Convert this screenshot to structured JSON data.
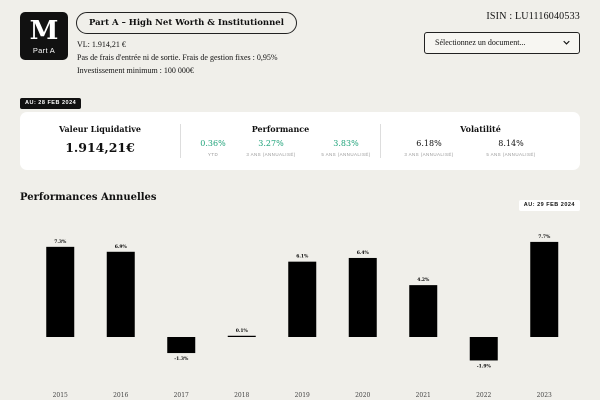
{
  "header": {
    "logo_mark": "M",
    "logo_sub": "Part A",
    "share_class": "Part A – High Net Worth & Institutionnel",
    "nav_line": "VL: 1.914,21 €",
    "fees_line": "Pas de frais d'entrée ni de sortie. Frais de gestion fixes : 0,95%",
    "min_invest_line": "Investissement minimum : 100 000€",
    "isin": "ISIN : LU1116040533",
    "doc_select_placeholder": "Sélectionnez un document..."
  },
  "summary": {
    "date_badge": "AU: 28 FEB 2024",
    "nav_title": "Valeur Liquidative",
    "nav_value": "1.914,21€",
    "performance_title": "Performance",
    "performance": [
      {
        "value": "0.36%",
        "label": "YTD"
      },
      {
        "value": "3.27%",
        "label": "3 ANS (ANNUALISÉ)"
      },
      {
        "value": "3.83%",
        "label": "5 ANS (ANNUALISÉ)"
      }
    ],
    "volatility_title": "Volatilité",
    "volatility": [
      {
        "value": "6.18%",
        "label": "3 ANS (ANNUALISÉ)"
      },
      {
        "value": "8.14%",
        "label": "5 ANS (ANNUALISÉ)"
      }
    ],
    "accent_green": "#1fa37a"
  },
  "annual": {
    "title": "Performances Annuelles",
    "date_badge": "AU: 29 FEB 2024"
  },
  "chart_data": {
    "type": "bar",
    "categories": [
      "2015",
      "2016",
      "2017",
      "2018",
      "2019",
      "2020",
      "2021",
      "2022",
      "2023"
    ],
    "values": [
      7.3,
      6.9,
      -1.3,
      0.1,
      6.1,
      6.4,
      4.2,
      -1.9,
      7.7
    ],
    "value_labels": [
      "7.3%",
      "6.9%",
      "-1.3%",
      "0.1%",
      "6.1%",
      "6.4%",
      "4.2%",
      "-1.9%",
      "7.7%"
    ],
    "title": "Performances Annuelles",
    "bar_color": "#000000",
    "grid": false
  }
}
